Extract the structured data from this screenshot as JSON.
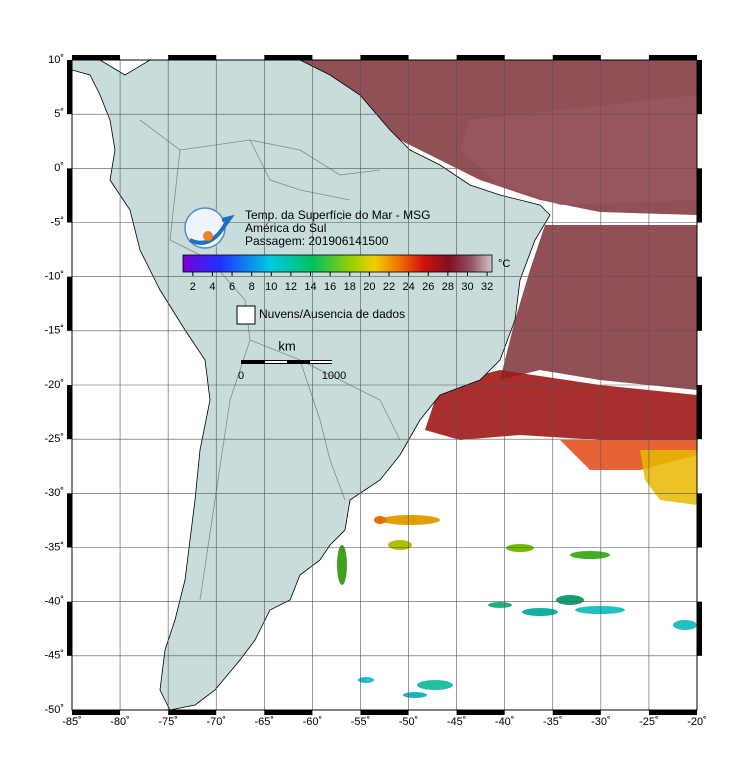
{
  "map": {
    "title_lines": [
      "Temp. da Superfície do Mar - MSG",
      "América do Sul",
      "Passagem: 201906141500"
    ],
    "colorbar": {
      "unit": "°C",
      "clim": [
        1,
        32.5
      ],
      "ticks": [
        2,
        4,
        6,
        8,
        10,
        12,
        14,
        16,
        18,
        20,
        22,
        24,
        26,
        28,
        30,
        32
      ]
    },
    "legend": "Nuvens/Ausencia de dados",
    "scale_bar": {
      "unit": "km",
      "ticks": [
        0,
        1000
      ]
    },
    "xlim": [
      -85,
      -20
    ],
    "ylim": [
      -50,
      10
    ],
    "xticks": [
      {
        "value": -85,
        "label": "-85˚"
      },
      {
        "value": -80,
        "label": "-80˚"
      },
      {
        "value": -75,
        "label": "-75˚"
      },
      {
        "value": -70,
        "label": "-70˚"
      },
      {
        "value": -65,
        "label": "-65˚"
      },
      {
        "value": -60,
        "label": "-60˚"
      },
      {
        "value": -55,
        "label": "-55˚"
      },
      {
        "value": -50,
        "label": "-50˚"
      },
      {
        "value": -45,
        "label": "-45˚"
      },
      {
        "value": -40,
        "label": "-40˚"
      },
      {
        "value": -35,
        "label": "-35˚"
      },
      {
        "value": -30,
        "label": "-30˚"
      },
      {
        "value": -25,
        "label": "-25˚"
      },
      {
        "value": -20,
        "label": "-20˚"
      }
    ],
    "yticks": [
      {
        "value": 10,
        "label": "10˚"
      },
      {
        "value": 5,
        "label": "5˚"
      },
      {
        "value": 0,
        "label": "0˚"
      },
      {
        "value": -5,
        "label": "-5˚"
      },
      {
        "value": -10,
        "label": "-10˚"
      },
      {
        "value": -15,
        "label": "-15˚"
      },
      {
        "value": -20,
        "label": "-20˚"
      },
      {
        "value": -25,
        "label": "-25˚"
      },
      {
        "value": -30,
        "label": "-30˚"
      },
      {
        "value": -35,
        "label": "-35˚"
      },
      {
        "value": -40,
        "label": "-40˚"
      },
      {
        "value": -45,
        "label": "-45˚"
      },
      {
        "value": -50,
        "label": "-50˚"
      }
    ]
  }
}
